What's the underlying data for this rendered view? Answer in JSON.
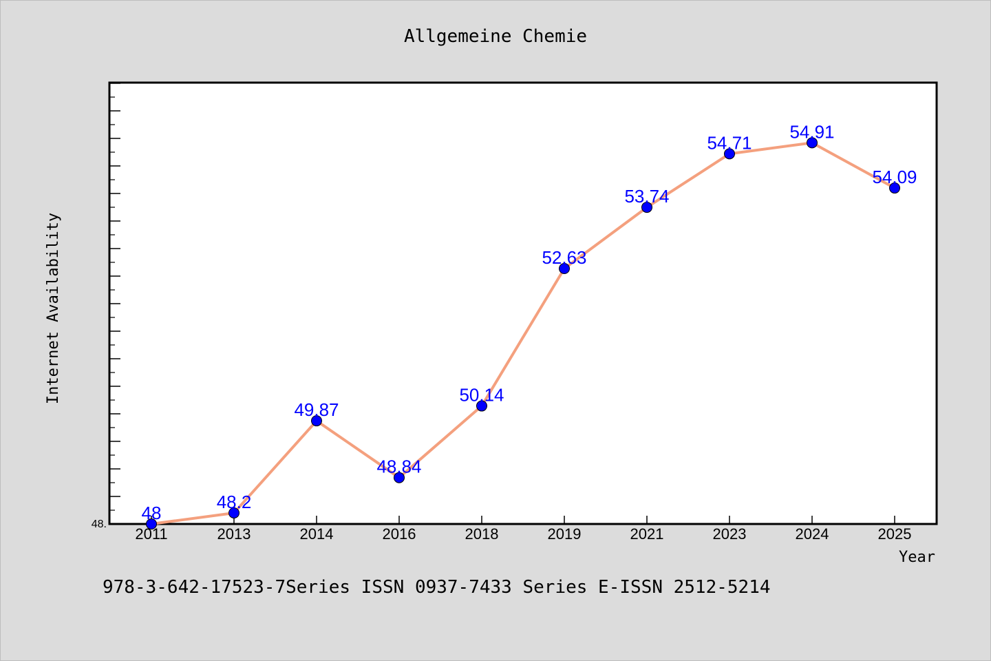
{
  "colors": {
    "background": "#dcdcdc",
    "plot_background": "#ffffff",
    "line": "#f4a07e",
    "marker": "#0000ff",
    "label": "#0000ff"
  },
  "footer_text": "978-3-642-17523-7Series ISSN 0937-7433 Series E-ISSN 2512-5214",
  "chart_data": {
    "type": "line",
    "title": "Allgemeine Chemie",
    "xlabel": "Year",
    "ylabel": "Internet Availability",
    "categories": [
      "2011",
      "2013",
      "2014",
      "2016",
      "2018",
      "2019",
      "2021",
      "2023",
      "2024",
      "2025"
    ],
    "values": [
      48,
      48.2,
      49.87,
      48.84,
      50.14,
      52.63,
      53.74,
      54.71,
      54.91,
      54.09
    ],
    "data_labels": [
      "48",
      "48.2",
      "49.87",
      "48.84",
      "50.14",
      "52.63",
      "53.74",
      "54.71",
      "54.91",
      "54.09"
    ],
    "ylim": [
      48,
      56
    ],
    "ytick_label": "48.",
    "grid": false,
    "legend": "none"
  }
}
